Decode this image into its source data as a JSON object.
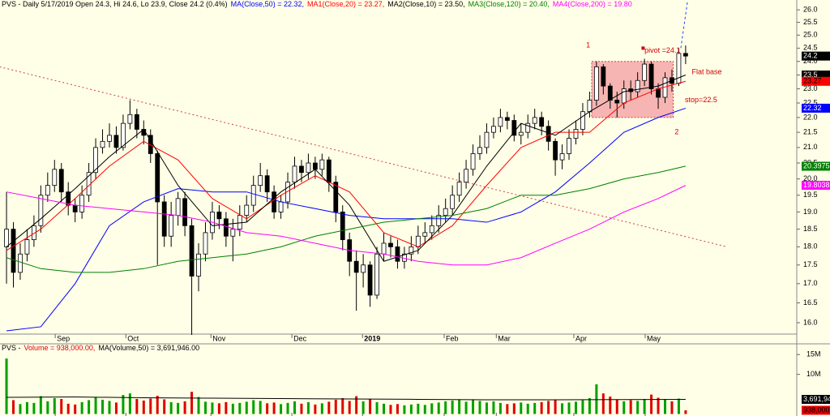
{
  "chart_data": [
    {
      "type": "candlestick",
      "title": "PVS - Daily 5/17/2019 Open 24.3, Hi 24.6, Lo 23.9, Close 24.2 (0.4%)",
      "log_scale": true,
      "xlim": [
        -0.95,
        115.2
      ],
      "ylim": [
        15.72,
        26.4
      ],
      "yticks": [
        {
          "value": 16,
          "label": "16.0"
        },
        {
          "value": 16.5,
          "label": "16.5"
        },
        {
          "value": 17,
          "label": "17.0"
        },
        {
          "value": 17.5,
          "label": "17.5"
        },
        {
          "value": 18,
          "label": "18.0"
        },
        {
          "value": 18.5,
          "label": "18.5"
        },
        {
          "value": 19,
          "label": "19.0"
        },
        {
          "value": 19.5,
          "label": "19.5"
        },
        {
          "value": 20,
          "label": "20.0"
        },
        {
          "value": 20.5,
          "label": "20.5"
        },
        {
          "value": 21,
          "label": "21.0"
        },
        {
          "value": 21.5,
          "label": "21.5"
        },
        {
          "value": 22,
          "label": "22.0"
        },
        {
          "value": 22.5,
          "label": "22.5"
        },
        {
          "value": 23,
          "label": "23.0"
        },
        {
          "value": 23.5,
          "label": "23.5"
        },
        {
          "value": 24,
          "label": "24.0"
        },
        {
          "value": 24.5,
          "label": "24.5"
        },
        {
          "value": 25,
          "label": "25.0"
        },
        {
          "value": 25.5,
          "label": "25.5"
        },
        {
          "value": 26,
          "label": "26.0"
        }
      ],
      "xticks": [
        {
          "value": 7.1,
          "label": "Sep"
        },
        {
          "value": 17.4,
          "label": "Oct"
        },
        {
          "value": 29.8,
          "label": "Nov"
        },
        {
          "value": 41.6,
          "label": "Dec"
        },
        {
          "value": 51.9,
          "label": "2019"
        },
        {
          "value": 63.8,
          "label": "Feb"
        },
        {
          "value": 71.4,
          "label": "Mar"
        },
        {
          "value": 82.7,
          "label": "Apr"
        },
        {
          "value": 93.1,
          "label": "May"
        }
      ],
      "open": [
        18.0,
        18.5,
        17.3,
        17.8,
        18.2,
        18.6,
        19.5,
        19.8,
        20.3,
        19.6,
        19.2,
        19.0,
        19.5,
        20.2,
        21.0,
        21.2,
        21.4,
        21.0,
        21.8,
        22.1,
        21.6,
        21.4,
        20.8,
        19.3,
        18.3,
        18.9,
        19.4,
        18.6,
        17.2,
        17.8,
        18.4,
        19.0,
        18.8,
        18.3,
        18.5,
        18.9,
        19.2,
        19.8,
        20.1,
        19.6,
        19.0,
        19.3,
        19.9,
        20.4,
        20.2,
        20.5,
        20.3,
        20.6,
        19.9,
        19.0,
        18.2,
        17.6,
        17.3,
        17.5,
        16.7,
        17.8,
        18.1,
        18.0,
        17.6,
        17.8,
        18.0,
        18.3,
        18.4,
        18.6,
        18.9,
        19.1,
        19.5,
        19.9,
        20.3,
        20.8,
        21.0,
        21.5,
        21.7,
        22.0,
        21.9,
        21.4,
        21.5,
        21.8,
        22.0,
        21.7,
        21.2,
        20.6,
        20.8,
        21.3,
        21.6,
        22.2,
        22.6,
        23.8,
        23.1,
        22.6,
        22.5,
        23.0,
        22.9,
        23.3,
        23.9,
        23.0,
        22.7,
        23.4,
        23.2,
        24.3
      ],
      "high": [
        19.6,
        18.7,
        18.1,
        18.5,
        18.9,
        19.8,
        20.2,
        20.6,
        20.5,
        19.9,
        19.4,
        19.8,
        20.5,
        21.3,
        21.6,
        21.8,
        21.7,
        22.1,
        22.6,
        22.3,
        21.9,
        21.6,
        20.9,
        19.5,
        19.3,
        19.6,
        19.6,
        18.8,
        18.1,
        18.7,
        19.3,
        19.2,
        19.0,
        18.8,
        19.2,
        19.5,
        20.1,
        20.5,
        20.3,
        19.8,
        19.5,
        20.2,
        20.7,
        20.6,
        20.8,
        20.7,
        20.8,
        20.7,
        20.1,
        19.2,
        18.4,
        17.9,
        17.8,
        17.6,
        18.0,
        18.4,
        18.3,
        18.2,
        18.0,
        18.3,
        18.6,
        18.7,
        18.9,
        19.2,
        19.4,
        19.8,
        20.2,
        20.6,
        21.1,
        21.4,
        21.8,
        22.0,
        22.3,
        22.2,
        22.1,
        21.8,
        22.1,
        22.3,
        22.2,
        21.9,
        21.3,
        21.1,
        21.6,
        21.9,
        22.5,
        22.9,
        24.0,
        23.9,
        23.2,
        22.9,
        23.3,
        23.3,
        23.6,
        24.1,
        24.0,
        23.2,
        23.6,
        23.7,
        24.5,
        24.6
      ],
      "low": [
        17.0,
        16.9,
        17.1,
        17.6,
        18.0,
        18.4,
        19.3,
        19.6,
        19.3,
        18.9,
        18.7,
        18.8,
        19.3,
        20.0,
        20.8,
        21.0,
        20.8,
        20.9,
        21.6,
        21.3,
        21.1,
        20.5,
        17.5,
        18.0,
        18.0,
        18.6,
        18.3,
        15.7,
        16.8,
        17.6,
        18.2,
        18.5,
        18.0,
        17.6,
        18.3,
        18.7,
        19.0,
        19.6,
        19.3,
        18.8,
        18.8,
        19.1,
        19.7,
        19.9,
        20.0,
        20.0,
        20.1,
        19.6,
        18.7,
        17.9,
        17.2,
        16.3,
        16.9,
        16.4,
        16.6,
        17.6,
        17.7,
        17.4,
        17.4,
        17.6,
        17.8,
        18.1,
        18.2,
        18.4,
        18.7,
        18.9,
        19.3,
        19.7,
        20.1,
        20.6,
        20.8,
        21.3,
        21.5,
        21.6,
        21.2,
        21.1,
        21.3,
        21.6,
        21.4,
        20.9,
        20.1,
        20.3,
        20.6,
        21.1,
        21.4,
        22.0,
        22.4,
        22.8,
        22.3,
        22.0,
        22.3,
        22.6,
        22.7,
        23.1,
        22.8,
        22.3,
        22.5,
        22.9,
        23.1,
        23.9
      ],
      "close": [
        18.5,
        17.3,
        17.8,
        18.2,
        18.6,
        19.5,
        19.8,
        20.3,
        19.6,
        19.2,
        19.0,
        19.5,
        20.2,
        21.0,
        21.2,
        21.4,
        21.0,
        21.8,
        22.1,
        21.6,
        21.4,
        20.8,
        19.3,
        18.3,
        18.9,
        19.4,
        18.6,
        17.2,
        17.8,
        18.4,
        19.0,
        18.8,
        18.3,
        18.5,
        18.9,
        19.2,
        19.8,
        20.1,
        19.6,
        19.0,
        19.3,
        19.9,
        20.4,
        20.2,
        20.5,
        20.3,
        20.6,
        19.9,
        19.0,
        18.2,
        17.6,
        17.3,
        17.5,
        16.7,
        17.8,
        18.1,
        18.0,
        17.6,
        17.8,
        18.0,
        18.3,
        18.4,
        18.6,
        18.9,
        19.1,
        19.5,
        19.9,
        20.3,
        20.8,
        21.0,
        21.5,
        21.7,
        22.0,
        21.9,
        21.4,
        21.5,
        21.8,
        22.0,
        21.7,
        21.2,
        20.6,
        20.8,
        21.3,
        21.6,
        22.2,
        22.6,
        23.8,
        23.1,
        22.6,
        22.5,
        23.0,
        22.9,
        23.3,
        23.9,
        23.0,
        22.7,
        23.4,
        23.2,
        24.3,
        24.2
      ],
      "series": [
        {
          "name": "MA(Close,50) = 22.32,",
          "color": "#0000ff",
          "x": [
            0,
            5,
            10,
            15,
            20,
            25,
            30,
            35,
            40,
            45,
            50,
            55,
            60,
            65,
            70,
            75,
            80,
            85,
            90,
            95,
            99
          ],
          "values": [
            15.8,
            15.9,
            17.0,
            18.6,
            19.3,
            19.7,
            19.6,
            19.6,
            19.3,
            19.1,
            18.9,
            18.8,
            18.8,
            18.8,
            18.7,
            19.0,
            19.6,
            20.5,
            21.5,
            22.0,
            22.32
          ]
        },
        {
          "name": "MA1(Close,20) = 23.27,",
          "color": "#ff0000",
          "x": [
            0,
            5,
            10,
            15,
            20,
            25,
            30,
            35,
            40,
            45,
            50,
            55,
            60,
            65,
            70,
            75,
            80,
            85,
            90,
            95,
            99
          ],
          "values": [
            17.9,
            18.5,
            19.4,
            20.4,
            21.2,
            20.6,
            19.4,
            18.8,
            19.5,
            20.1,
            19.6,
            18.4,
            18.0,
            18.6,
            19.8,
            21.0,
            21.5,
            21.5,
            22.5,
            23.0,
            23.27
          ]
        },
        {
          "name": "MA2(Close,10) = 23.50,",
          "color": "#000000",
          "x": [
            0,
            5,
            10,
            15,
            20,
            25,
            30,
            35,
            40,
            45,
            50,
            55,
            60,
            65,
            70,
            75,
            80,
            85,
            90,
            95,
            99
          ],
          "values": [
            18.0,
            18.8,
            19.7,
            20.7,
            21.6,
            19.8,
            18.6,
            18.7,
            19.6,
            20.3,
            19.2,
            17.6,
            17.9,
            18.9,
            20.4,
            21.8,
            21.4,
            22.2,
            22.9,
            23.1,
            23.5
          ]
        },
        {
          "name": "MA3(Close,120) = 20.40,",
          "color": "#008000",
          "x": [
            0,
            5,
            10,
            15,
            20,
            25,
            30,
            35,
            40,
            45,
            50,
            55,
            60,
            65,
            70,
            75,
            80,
            85,
            90,
            95,
            99
          ],
          "values": [
            17.7,
            17.4,
            17.3,
            17.3,
            17.4,
            17.6,
            17.7,
            17.8,
            18.0,
            18.3,
            18.5,
            18.7,
            18.8,
            18.9,
            19.1,
            19.5,
            19.5,
            19.7,
            20.0,
            20.2,
            20.4
          ]
        },
        {
          "name": "MA4(Close,200) = 19.80",
          "color": "#ff00ff",
          "x": [
            0,
            5,
            10,
            15,
            20,
            25,
            30,
            35,
            40,
            45,
            50,
            55,
            60,
            65,
            70,
            75,
            80,
            85,
            90,
            95,
            99
          ],
          "values": [
            19.6,
            19.4,
            19.2,
            19.1,
            19.0,
            18.9,
            18.7,
            18.4,
            18.3,
            18.1,
            17.9,
            17.8,
            17.6,
            17.5,
            17.5,
            17.7,
            18.1,
            18.5,
            19.0,
            19.4,
            19.8
          ]
        }
      ],
      "trendlines": [
        {
          "color": "#d04040",
          "dash": "2,3",
          "x": [
            -1,
            105
          ],
          "values": [
            23.8,
            18.0
          ]
        },
        {
          "color": "#2040ff",
          "dash": "3,3",
          "x": [
            98.3,
            99.3
          ],
          "values": [
            24.5,
            26.4
          ]
        }
      ],
      "box": {
        "x": [
          85.3,
          97.2
        ],
        "values": [
          24.0,
          22.0
        ],
        "color": "#f4a8a8"
      },
      "annotations": [
        {
          "text": "1",
          "x": 84.5,
          "y": 24.6
        },
        {
          "text": "2",
          "x": 97.4,
          "y": 21.5
        },
        {
          "text": "pivot =24.1",
          "x": 93.0,
          "y": 24.4
        },
        {
          "text": "Flat base",
          "x": 99.9,
          "y": 23.6
        },
        {
          "text": "stop=22.5",
          "x": 98.9,
          "y": 22.6
        }
      ],
      "pivot_marker": {
        "x": 92.8,
        "y": 24.5
      },
      "last_labels": [
        {
          "value": 24.2,
          "label": "24.2",
          "color": "#000000",
          "text_color": "#ffffff"
        },
        {
          "value": 23.5,
          "label": "23.5",
          "color": "#000000",
          "text_color": "#ffffff"
        },
        {
          "value": 23.27,
          "label": "23.27",
          "color": "#ff0000",
          "text_color": "#000000"
        },
        {
          "value": 22.32,
          "label": "22.32",
          "color": "#0000ff",
          "text_color": "#ffffff"
        },
        {
          "value": 20.3975,
          "label": "20.3975",
          "color": "#008000",
          "text_color": "#ffffff"
        },
        {
          "value": 19.8038,
          "label": "19.8038",
          "color": "#ff00ff",
          "text_color": "#ffffff"
        }
      ]
    },
    {
      "type": "bar",
      "title": "PVS -",
      "ylim": [
        -500000,
        17500000
      ],
      "yticks": [
        {
          "value": 15000000,
          "label": "15M"
        },
        {
          "value": 10000000,
          "label": "10M"
        }
      ],
      "up_color": "#00a000",
      "down_color": "#e00000",
      "series": [
        {
          "name": "Volume = 938,000.00,",
          "color": "#e00000",
          "values": [
            14000000,
            3500000,
            2500000,
            3000000,
            2800000,
            4500000,
            3200000,
            4000000,
            3800000,
            2600000,
            2400000,
            3000000,
            3500000,
            4200000,
            3600000,
            3300000,
            2900000,
            4800000,
            5200000,
            3800000,
            3400000,
            3900000,
            4600000,
            3700000,
            3000000,
            2800000,
            3200000,
            5600000,
            4300000,
            3100000,
            2900000,
            2700000,
            3000000,
            2600000,
            2800000,
            3100000,
            3500000,
            3300000,
            2700000,
            2900000,
            2500000,
            2800000,
            3200000,
            2600000,
            3000000,
            2400000,
            2700000,
            3100000,
            3600000,
            4000000,
            3300000,
            4500000,
            3200000,
            3800000,
            3000000,
            2600000,
            2300000,
            2500000,
            2200000,
            2400000,
            2600000,
            2300000,
            2700000,
            2900000,
            3200000,
            3400000,
            3600000,
            3100000,
            3700000,
            3300000,
            2900000,
            3200000,
            2800000,
            2500000,
            2700000,
            2900000,
            2600000,
            2800000,
            3000000,
            3300000,
            3600000,
            2700000,
            2900000,
            3100000,
            3500000,
            4000000,
            7500000,
            5200000,
            4400000,
            3600000,
            3200000,
            3500000,
            3300000,
            3800000,
            4900000,
            4100000,
            3600000,
            3200000,
            3900000,
            938000
          ]
        },
        {
          "name": "MA(Volume,50) = 3,691,946.00",
          "color": "#000000",
          "x": [
            0,
            10,
            20,
            30,
            40,
            50,
            60,
            70,
            80,
            90,
            99
          ],
          "values": [
            4200000,
            4300000,
            4100000,
            4000000,
            3900000,
            3800000,
            3700000,
            3600000,
            3600000,
            3650000,
            3691946
          ]
        }
      ],
      "last_labels": [
        {
          "value": 3691946,
          "label": "3,691,946",
          "color": "#000000",
          "text_color": "#ffffff"
        },
        {
          "value": 938000,
          "label": "938,000",
          "color": "#e00000",
          "text_color": "#000000"
        }
      ]
    }
  ]
}
